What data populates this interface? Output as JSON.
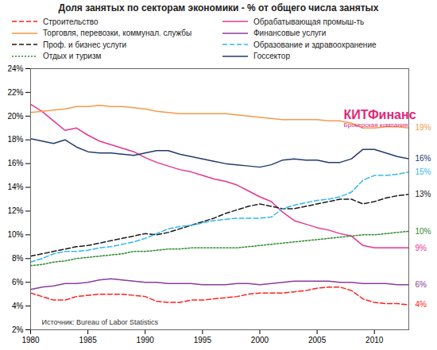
{
  "chart_data": {
    "type": "line",
    "title": "Доля занятых по секторам экономики - % от общего числа занятых",
    "x": [
      1980,
      1981,
      1982,
      1983,
      1984,
      1985,
      1986,
      1987,
      1988,
      1989,
      1990,
      1991,
      1992,
      1993,
      1994,
      1995,
      1996,
      1997,
      1998,
      1999,
      2000,
      2001,
      2002,
      2003,
      2004,
      2005,
      2006,
      2007,
      2008,
      2009,
      2010,
      2011,
      2012,
      2013
    ],
    "xlim": [
      1980,
      2013
    ],
    "xticks": [
      1980,
      1985,
      1990,
      1995,
      2000,
      2005,
      2010
    ],
    "ylim": [
      2,
      24
    ],
    "yticks": [
      {
        "value": 2,
        "label": "2%"
      },
      {
        "value": 4,
        "label": "4%"
      },
      {
        "value": 6,
        "label": "6%"
      },
      {
        "value": 8,
        "label": "8%"
      },
      {
        "value": 10,
        "label": "10%"
      },
      {
        "value": 12,
        "label": "12%"
      },
      {
        "value": 14,
        "label": "14%"
      },
      {
        "value": 16,
        "label": "16%"
      },
      {
        "value": 18,
        "label": "18%"
      },
      {
        "value": 20,
        "label": "20%"
      },
      {
        "value": 22,
        "label": "22%"
      },
      {
        "value": 24,
        "label": "24%"
      }
    ],
    "grid": false,
    "data_labels": true,
    "annotations": [
      "КИТФинанс",
      "Брокерская компания",
      "Источник: Bureau of Labor Statistics"
    ],
    "series": [
      {
        "name": "Строительство",
        "color": "#ff2020",
        "line_style": "dashed",
        "values": [
          5.1,
          4.8,
          4.5,
          4.5,
          4.8,
          4.9,
          5.0,
          5.0,
          5.0,
          4.9,
          4.8,
          4.4,
          4.3,
          4.3,
          4.5,
          4.5,
          4.6,
          4.7,
          4.8,
          5.0,
          5.1,
          5.1,
          5.1,
          5.2,
          5.3,
          5.5,
          5.6,
          5.6,
          5.3,
          4.6,
          4.3,
          4.2,
          4.2,
          4.1
        ],
        "value_labels": [
          null,
          null,
          null,
          null,
          null,
          null,
          null,
          null,
          null,
          null,
          null,
          null,
          null,
          null,
          null,
          null,
          null,
          null,
          null,
          null,
          null,
          null,
          null,
          null,
          null,
          null,
          null,
          null,
          null,
          null,
          null,
          null,
          null,
          "4%"
        ]
      },
      {
        "name": "Обрабатывающая промыш-ть",
        "color": "#e8358e",
        "line_style": "solid",
        "values": [
          21.0,
          20.4,
          19.6,
          18.8,
          19.0,
          18.4,
          17.9,
          17.6,
          17.3,
          17.0,
          16.5,
          16.1,
          15.8,
          15.5,
          15.3,
          15.0,
          14.7,
          14.5,
          14.2,
          13.7,
          13.2,
          12.8,
          11.9,
          11.2,
          10.9,
          10.6,
          10.4,
          10.1,
          9.9,
          9.1,
          8.9,
          8.9,
          8.9,
          8.9
        ],
        "value_labels": [
          null,
          null,
          null,
          null,
          null,
          null,
          null,
          null,
          null,
          null,
          null,
          null,
          null,
          null,
          null,
          null,
          null,
          null,
          null,
          null,
          null,
          null,
          null,
          null,
          null,
          null,
          null,
          null,
          null,
          null,
          null,
          null,
          null,
          "9%"
        ]
      },
      {
        "name": "Торговля, перевозки, коммунал. службы",
        "color": "#f59a4a",
        "line_style": "solid",
        "values": [
          20.3,
          20.4,
          20.5,
          20.6,
          20.8,
          20.8,
          20.9,
          20.8,
          20.8,
          20.7,
          20.6,
          20.4,
          20.3,
          20.2,
          20.2,
          20.2,
          20.2,
          20.2,
          20.1,
          20.0,
          19.9,
          19.8,
          19.7,
          19.7,
          19.7,
          19.7,
          19.6,
          19.6,
          19.4,
          19.0,
          19.0,
          19.1,
          19.1,
          19.0
        ],
        "value_labels": [
          null,
          null,
          null,
          null,
          null,
          null,
          null,
          null,
          null,
          null,
          null,
          null,
          null,
          null,
          null,
          null,
          null,
          null,
          null,
          null,
          null,
          null,
          null,
          null,
          null,
          null,
          null,
          null,
          null,
          null,
          null,
          null,
          null,
          "19%"
        ]
      },
      {
        "name": "Финансовые услуги",
        "color": "#8a3c9e",
        "line_style": "solid",
        "values": [
          5.4,
          5.6,
          5.7,
          5.9,
          5.9,
          6.0,
          6.2,
          6.3,
          6.2,
          6.1,
          6.0,
          6.0,
          5.9,
          5.9,
          5.9,
          5.8,
          5.8,
          5.8,
          5.9,
          5.9,
          5.8,
          5.9,
          6.0,
          6.1,
          6.1,
          6.1,
          6.1,
          6.0,
          6.0,
          5.9,
          5.9,
          5.9,
          5.8,
          5.8
        ],
        "value_labels": [
          null,
          null,
          null,
          null,
          null,
          null,
          null,
          null,
          null,
          null,
          null,
          null,
          null,
          null,
          null,
          null,
          null,
          null,
          null,
          null,
          null,
          null,
          null,
          null,
          null,
          null,
          null,
          null,
          null,
          null,
          null,
          null,
          null,
          "6%"
        ]
      },
      {
        "name": "Проф. и бизнес услуги",
        "color": "#1a1a1a",
        "line_style": "dashed",
        "values": [
          8.2,
          8.4,
          8.6,
          8.8,
          9.0,
          9.1,
          9.3,
          9.5,
          9.7,
          9.9,
          10.1,
          10.0,
          10.2,
          10.5,
          10.8,
          11.1,
          11.4,
          11.8,
          12.1,
          12.4,
          12.6,
          12.4,
          12.2,
          12.2,
          12.4,
          12.6,
          12.8,
          13.0,
          13.0,
          12.6,
          12.8,
          13.1,
          13.3,
          13.4
        ],
        "value_labels": [
          null,
          null,
          null,
          null,
          null,
          null,
          null,
          null,
          null,
          null,
          null,
          null,
          null,
          null,
          null,
          null,
          null,
          null,
          null,
          null,
          null,
          null,
          null,
          null,
          null,
          null,
          null,
          null,
          null,
          null,
          null,
          null,
          null,
          "13%"
        ]
      },
      {
        "name": "Образование и здравоохранение",
        "color": "#33b8ec",
        "line_style": "dashed",
        "values": [
          7.7,
          8.0,
          8.4,
          8.6,
          8.6,
          8.7,
          8.9,
          9.0,
          9.2,
          9.4,
          9.7,
          10.1,
          10.5,
          10.7,
          10.8,
          11.0,
          11.2,
          11.3,
          11.4,
          11.4,
          11.4,
          11.5,
          12.2,
          12.5,
          12.7,
          12.9,
          13.0,
          13.2,
          13.6,
          14.6,
          15.0,
          15.0,
          15.1,
          15.3
        ],
        "value_labels": [
          null,
          null,
          null,
          null,
          null,
          null,
          null,
          null,
          null,
          null,
          null,
          null,
          null,
          null,
          null,
          null,
          null,
          null,
          null,
          null,
          null,
          null,
          null,
          null,
          null,
          null,
          null,
          null,
          null,
          null,
          null,
          null,
          null,
          "15%"
        ]
      },
      {
        "name": "Отдых и туризм",
        "color": "#2e8b2e",
        "line_style": "dotted",
        "values": [
          7.4,
          7.5,
          7.7,
          7.8,
          8.0,
          8.1,
          8.2,
          8.3,
          8.4,
          8.6,
          8.6,
          8.7,
          8.8,
          8.8,
          8.9,
          8.9,
          8.9,
          8.9,
          8.9,
          9.0,
          9.1,
          9.2,
          9.3,
          9.4,
          9.5,
          9.6,
          9.7,
          9.8,
          9.9,
          10.0,
          10.0,
          10.1,
          10.2,
          10.3
        ],
        "value_labels": [
          null,
          null,
          null,
          null,
          null,
          null,
          null,
          null,
          null,
          null,
          null,
          null,
          null,
          null,
          null,
          null,
          null,
          null,
          null,
          null,
          null,
          null,
          null,
          null,
          null,
          null,
          null,
          null,
          null,
          null,
          null,
          null,
          null,
          "10%"
        ]
      },
      {
        "name": "Госсектор",
        "color": "#233a6b",
        "line_style": "solid",
        "values": [
          18.1,
          17.9,
          17.7,
          18.0,
          17.4,
          17.0,
          16.9,
          16.9,
          16.8,
          16.7,
          16.9,
          17.1,
          17.1,
          16.8,
          16.6,
          16.4,
          16.2,
          16.0,
          15.9,
          15.8,
          15.7,
          15.9,
          16.3,
          16.4,
          16.3,
          16.3,
          16.1,
          16.1,
          16.4,
          17.2,
          17.2,
          16.9,
          16.6,
          16.4
        ],
        "value_labels": [
          null,
          null,
          null,
          null,
          null,
          null,
          null,
          null,
          null,
          null,
          null,
          null,
          null,
          null,
          null,
          null,
          null,
          null,
          null,
          null,
          null,
          null,
          null,
          null,
          null,
          null,
          null,
          null,
          null,
          null,
          null,
          null,
          null,
          "16%"
        ]
      }
    ]
  }
}
